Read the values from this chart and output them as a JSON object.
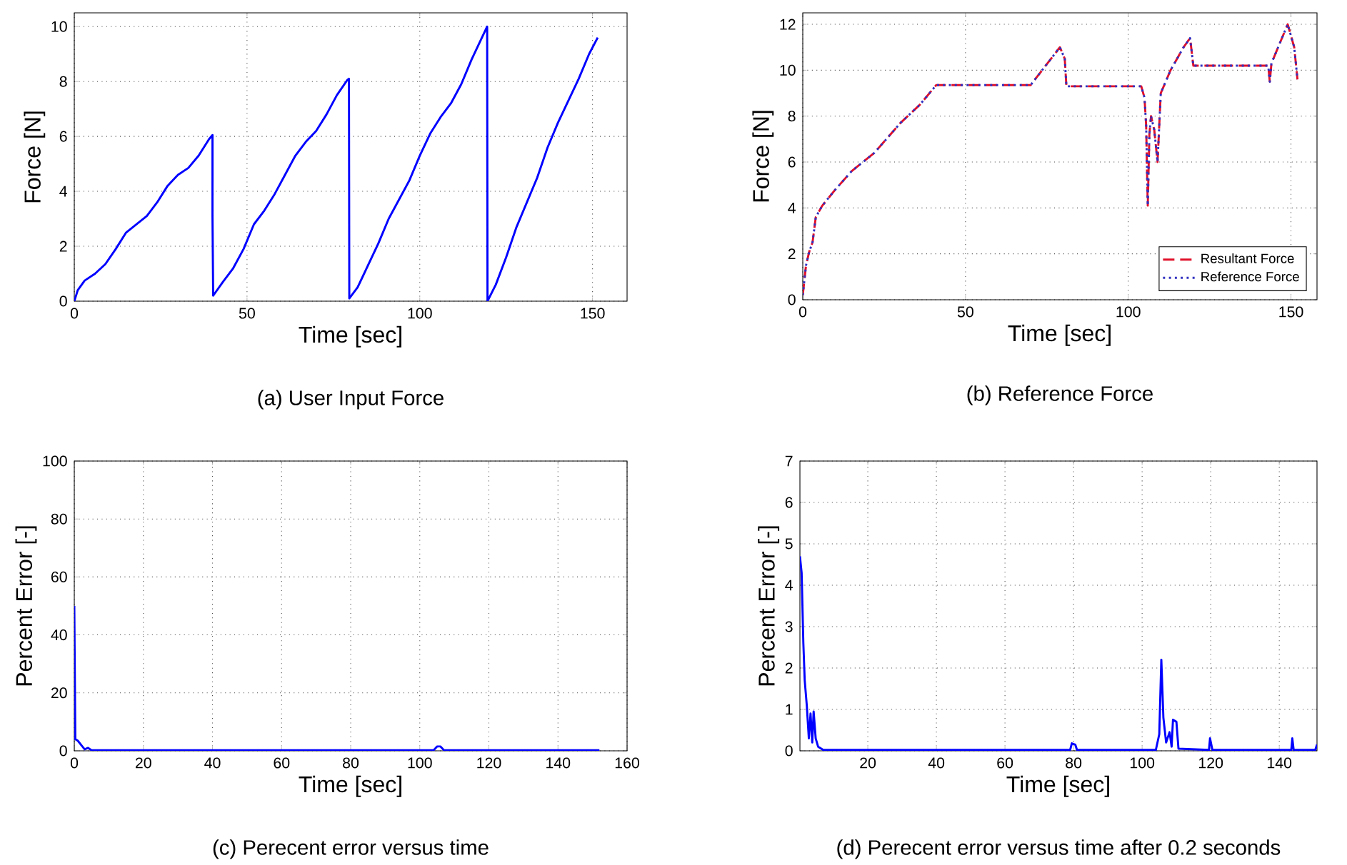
{
  "chart_data": [
    {
      "type": "line",
      "title": "(a) User Input Force",
      "xlabel": "Time [sec]",
      "ylabel": "Force [N]",
      "xlim": [
        0,
        160
      ],
      "ylim": [
        0,
        10.5
      ],
      "xticks": [
        0,
        50,
        100,
        150
      ],
      "yticks": [
        0,
        2,
        4,
        6,
        8,
        10
      ],
      "grid": true,
      "line_style": "solid",
      "series": [
        {
          "color": "#0000ff",
          "x": [
            0,
            1,
            3,
            6,
            9,
            12,
            15,
            18,
            21,
            24,
            27,
            30,
            33,
            36,
            39,
            40,
            40,
            40.2,
            43,
            46,
            49,
            52,
            55,
            58,
            61,
            64,
            67,
            70,
            73,
            76,
            79,
            79.5,
            79.6,
            82,
            85,
            88,
            91,
            94,
            97,
            100,
            103,
            106,
            109,
            112,
            115,
            118,
            119.5,
            119.6,
            122,
            125,
            128,
            131,
            134,
            137,
            140,
            143,
            146,
            149,
            151.5
          ],
          "values": [
            0,
            0.4,
            0.75,
            1.0,
            1.35,
            1.9,
            2.5,
            2.8,
            3.1,
            3.6,
            4.2,
            4.6,
            4.85,
            5.3,
            5.9,
            6.05,
            3.1,
            0.2,
            0.7,
            1.2,
            1.9,
            2.8,
            3.3,
            3.9,
            4.6,
            5.3,
            5.8,
            6.2,
            6.8,
            7.5,
            8.05,
            8.1,
            0.1,
            0.5,
            1.3,
            2.1,
            3.0,
            3.7,
            4.4,
            5.3,
            6.1,
            6.7,
            7.2,
            7.9,
            8.8,
            9.6,
            10,
            0,
            0.6,
            1.6,
            2.7,
            3.6,
            4.5,
            5.6,
            6.5,
            7.3,
            8.1,
            9.0,
            9.6
          ]
        }
      ]
    },
    {
      "type": "line",
      "title": "(b) Reference Force",
      "xlabel": "Time [sec]",
      "ylabel": "Force [N]",
      "xlim": [
        0,
        158
      ],
      "ylim": [
        0,
        12.5
      ],
      "xticks": [
        0,
        50,
        100,
        150
      ],
      "yticks": [
        0,
        2,
        4,
        6,
        8,
        10,
        12
      ],
      "grid": true,
      "legend": "bottom right",
      "series": [
        {
          "name": "Resultant Force",
          "color": "#e0102a",
          "line_style": "dashed",
          "x": [
            0,
            1,
            2,
            3,
            4,
            6,
            10,
            15,
            22,
            30,
            36,
            41,
            70,
            79,
            80.5,
            81,
            104,
            105,
            105.5,
            106,
            106.5,
            107,
            108,
            109,
            110,
            113,
            117,
            119,
            120,
            143,
            143.5,
            144,
            149,
            151,
            152
          ],
          "values": [
            0.2,
            1.5,
            2.1,
            2.5,
            3.6,
            4.1,
            4.8,
            5.6,
            6.4,
            7.7,
            8.5,
            9.35,
            9.35,
            11,
            10.5,
            9.3,
            9.3,
            8.8,
            7.6,
            4.1,
            7.2,
            8.0,
            7.4,
            6.0,
            9.0,
            10.0,
            11.0,
            11.4,
            10.2,
            10.2,
            9.5,
            10.3,
            12,
            11,
            9.6
          ]
        },
        {
          "name": "Reference Force",
          "color": "#3030c0",
          "line_style": "dotted",
          "x": [
            0,
            1,
            2,
            3,
            4,
            6,
            10,
            15,
            22,
            30,
            36,
            41,
            70,
            79,
            80.5,
            81,
            104,
            105,
            105.5,
            106,
            106.5,
            107,
            108,
            109,
            110,
            113,
            117,
            119,
            120,
            143,
            143.5,
            144,
            149,
            151,
            152
          ],
          "values": [
            0.2,
            1.5,
            2.1,
            2.5,
            3.6,
            4.1,
            4.8,
            5.6,
            6.4,
            7.7,
            8.5,
            9.35,
            9.35,
            11,
            10.5,
            9.3,
            9.3,
            8.8,
            7.6,
            4.1,
            7.2,
            8.0,
            7.4,
            6.0,
            9.0,
            10.0,
            11.0,
            11.4,
            10.2,
            10.2,
            9.5,
            10.3,
            12,
            11,
            9.6
          ]
        }
      ]
    },
    {
      "type": "line",
      "title": "(c) Perecent error versus time",
      "xlabel": "Time [sec]",
      "ylabel": "Percent Error [-]",
      "xlim": [
        0,
        160
      ],
      "ylim": [
        0,
        100
      ],
      "xticks": [
        0,
        20,
        40,
        60,
        80,
        100,
        120,
        140,
        160
      ],
      "yticks": [
        0,
        20,
        40,
        60,
        80,
        100
      ],
      "grid": true,
      "line_style": "solid",
      "series": [
        {
          "color": "#0000ff",
          "x": [
            0,
            0.3,
            1,
            2,
            3,
            4,
            5,
            104,
            105,
            106,
            107,
            152
          ],
          "values": [
            50,
            4,
            3.5,
            2,
            0.5,
            1,
            0.2,
            0.2,
            1.5,
            1.5,
            0.2,
            0.2
          ]
        }
      ]
    },
    {
      "type": "line",
      "title": "(d) Perecent error versus time after 0.2 seconds",
      "xlabel": "Time [sec]",
      "ylabel": "Percent Error [-]",
      "xlim": [
        0.2,
        151
      ],
      "ylim": [
        0,
        7
      ],
      "xticks": [
        20,
        40,
        60,
        80,
        100,
        120,
        140
      ],
      "yticks": [
        0,
        1,
        2,
        3,
        4,
        5,
        6,
        7
      ],
      "grid": true,
      "line_style": "solid",
      "series": [
        {
          "color": "#0000ff",
          "x": [
            0.2,
            0.7,
            1.2,
            1.6,
            2.2,
            2.8,
            3.3,
            3.8,
            4.2,
            4.8,
            5.5,
            7,
            79,
            79.5,
            80.5,
            81,
            104,
            105,
            105.6,
            106.2,
            107,
            108,
            108.6,
            109,
            110,
            110.6,
            119.5,
            119.8,
            120.5,
            143.5,
            143.8,
            144.2,
            150.5,
            151
          ],
          "values": [
            4.7,
            4.3,
            2.6,
            1.7,
            1.1,
            0.3,
            0.9,
            0.2,
            0.95,
            0.3,
            0.1,
            0.02,
            0.02,
            0.18,
            0.15,
            0.02,
            0.02,
            0.4,
            2.2,
            0.8,
            0.2,
            0.45,
            0.1,
            0.75,
            0.7,
            0.05,
            0.02,
            0.3,
            0.02,
            0.02,
            0.3,
            0.02,
            0.02,
            0.15
          ]
        }
      ]
    }
  ]
}
